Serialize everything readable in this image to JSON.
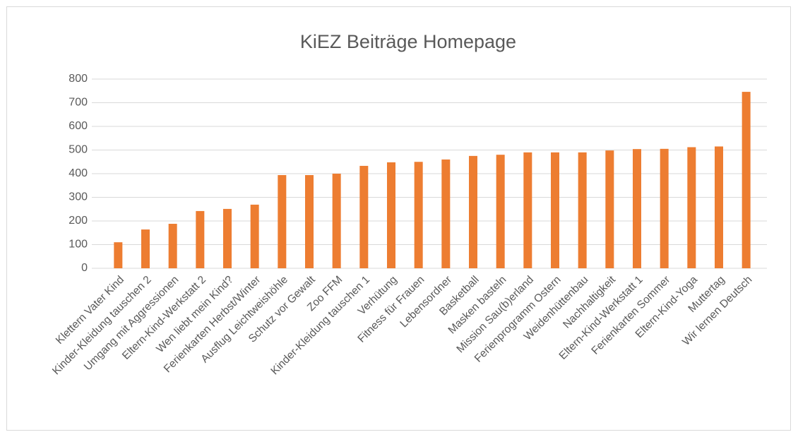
{
  "chart_data": {
    "type": "bar",
    "title": "KiEZ Beiträge Homepage",
    "categories": [
      "Klettern Vater Kind",
      "Kinder-Kleidung tauschen 2",
      "Umgang mit Aggressionen",
      "Eltern-Kind-Werkstatt 2",
      "Wen liebt mein Kind?",
      "Ferienkarten Herbst/Winter",
      "Ausflug Leichtweishöhle",
      "Schutz vor Gewalt",
      "Zoo FFM",
      "Kinder-Kleidung tauschen 1",
      "Verhütung",
      "Fitness für Frauen",
      "Lebensordner",
      "Basketball",
      "Masken basteln",
      "Mission Sau(b)erland",
      "Ferienprogramm Ostern",
      "Weidenhüttenbau",
      "Nachhaltigkeit",
      "Eltern-Kind-Werkstatt 1",
      "Ferienkarten Sommer",
      "Eltern-Kind-Yoga",
      "Muttertag",
      "Wir lernen Deutsch"
    ],
    "values": [
      110,
      164,
      188,
      242,
      251,
      269,
      394,
      394,
      400,
      433,
      448,
      450,
      460,
      475,
      480,
      490,
      490,
      490,
      498,
      504,
      505,
      512,
      515,
      746
    ],
    "color": "#ed7d31",
    "ylim": [
      0,
      800
    ],
    "yticks": [
      0,
      100,
      200,
      300,
      400,
      500,
      600,
      700,
      800
    ],
    "grid": true
  }
}
